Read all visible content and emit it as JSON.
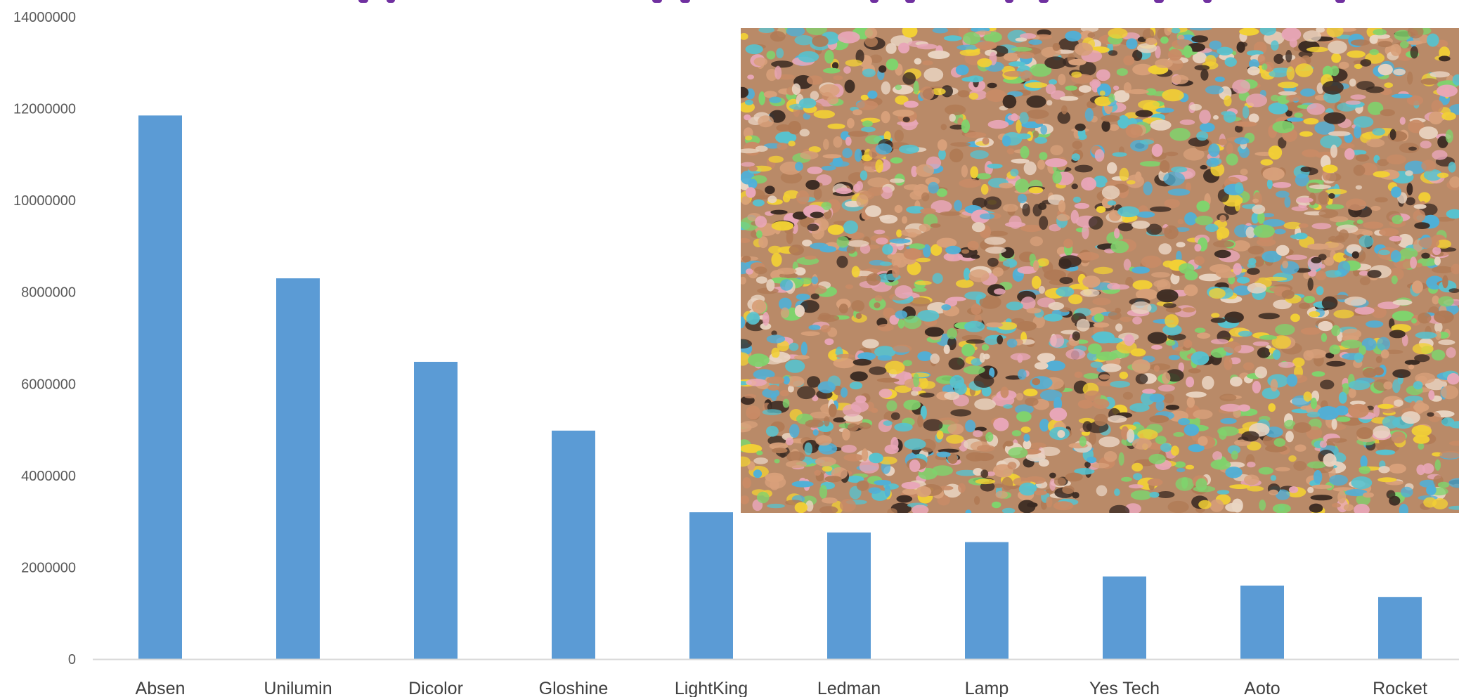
{
  "chart_data": {
    "type": "bar",
    "categories": [
      "Absen",
      "Unilumin",
      "Dicolor",
      "Gloshine",
      "LightKing",
      "Ledman",
      "Lamp",
      "Yes Tech",
      "Aoto",
      "Rocket"
    ],
    "values": [
      11850000,
      8300000,
      6480000,
      4980000,
      3200000,
      2760000,
      2550000,
      1800000,
      1600000,
      1350000
    ],
    "ylim": [
      0,
      14000000
    ],
    "yticks": [
      "0",
      "2000000",
      "4000000",
      "6000000",
      "8000000",
      "10000000",
      "12000000",
      "14000000"
    ],
    "title": "",
    "xlabel": "",
    "ylabel": "",
    "grid": false,
    "legend": "none",
    "bar_color": "#5b9bd5",
    "axis_color": "#d9d9d9",
    "title_color": "#7030a0"
  },
  "overlay_photo": {
    "subject": "crowded-swimming-pool-photo",
    "palette": [
      "#d8a07a",
      "#c98b66",
      "#f2d035",
      "#57c2cf",
      "#e8a6b8",
      "#7fd36d",
      "#3a2a22",
      "#e9d4c2",
      "#4fb0d8",
      "#b07a55"
    ]
  }
}
